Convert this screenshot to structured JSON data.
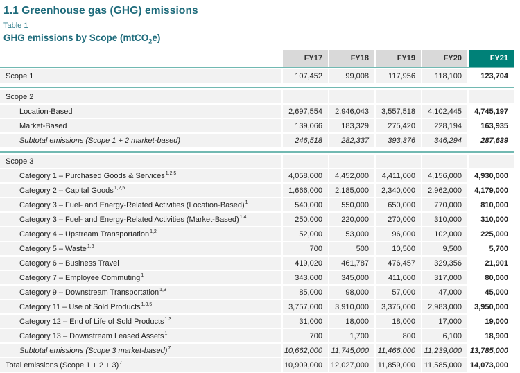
{
  "page": {
    "section_title": "1.1 Greenhouse gas (GHG) emissions",
    "table_label": "Table 1",
    "table_title_prefix": "GHG emissions by Scope (mtCO",
    "table_title_subscript": "2",
    "table_title_suffix": "e)"
  },
  "colors": {
    "accent_teal": "#008178",
    "separator_teal": "#72B9B2",
    "heading_teal": "#1E6B7B",
    "header_gray": "#D9D9D9",
    "row_stripe_gray": "#F2F2F2",
    "text_dark": "#222222"
  },
  "table": {
    "columns": [
      "FY17",
      "FY18",
      "FY19",
      "FY20",
      "FY21"
    ],
    "rows": [
      {
        "label": "Scope 1",
        "sup": "",
        "indent": 0,
        "italic": false,
        "break_before": false,
        "values": [
          "107,452",
          "99,008",
          "117,956",
          "118,100",
          "123,704"
        ]
      },
      {
        "label": "Scope 2",
        "sup": "",
        "indent": 0,
        "italic": false,
        "break_before": true,
        "values": [
          "",
          "",
          "",
          "",
          ""
        ]
      },
      {
        "label": "Location-Based",
        "sup": "",
        "indent": 1,
        "italic": false,
        "break_before": false,
        "values": [
          "2,697,554",
          "2,946,043",
          "3,557,518",
          "4,102,445",
          "4,745,197"
        ]
      },
      {
        "label": "Market-Based",
        "sup": "",
        "indent": 1,
        "italic": false,
        "break_before": false,
        "values": [
          "139,066",
          "183,329",
          "275,420",
          "228,194",
          "163,935"
        ]
      },
      {
        "label": "Subtotal emissions (Scope 1 + 2 market-based)",
        "sup": "",
        "indent": 1,
        "italic": true,
        "break_before": false,
        "values": [
          "246,518",
          "282,337",
          "393,376",
          "346,294",
          "287,639"
        ]
      },
      {
        "label": "Scope 3",
        "sup": "",
        "indent": 0,
        "italic": false,
        "break_before": true,
        "values": [
          "",
          "",
          "",
          "",
          ""
        ]
      },
      {
        "label": "Category 1 – Purchased Goods & Services",
        "sup": "1,2,5",
        "indent": 1,
        "italic": false,
        "break_before": false,
        "values": [
          "4,058,000",
          "4,452,000",
          "4,411,000",
          "4,156,000",
          "4,930,000"
        ]
      },
      {
        "label": "Category 2 – Capital Goods",
        "sup": "1,2,5",
        "indent": 1,
        "italic": false,
        "break_before": false,
        "values": [
          "1,666,000",
          "2,185,000",
          "2,340,000",
          "2,962,000",
          "4,179,000"
        ]
      },
      {
        "label": "Category 3 – Fuel- and Energy-Related Activities (Location-Based)",
        "sup": "1",
        "indent": 1,
        "italic": false,
        "break_before": false,
        "values": [
          "540,000",
          "550,000",
          "650,000",
          "770,000",
          "810,000"
        ]
      },
      {
        "label": "Category 3 – Fuel- and Energy-Related Activities (Market-Based)",
        "sup": "1,4",
        "indent": 1,
        "italic": false,
        "break_before": false,
        "values": [
          "250,000",
          "220,000",
          "270,000",
          "310,000",
          "310,000"
        ]
      },
      {
        "label": "Category 4 – Upstream Transportation",
        "sup": "1,2",
        "indent": 1,
        "italic": false,
        "break_before": false,
        "values": [
          "52,000",
          "53,000",
          "96,000",
          "102,000",
          "225,000"
        ]
      },
      {
        "label": "Category 5 – Waste",
        "sup": "1,6",
        "indent": 1,
        "italic": false,
        "break_before": false,
        "values": [
          "700",
          "500",
          "10,500",
          "9,500",
          "5,700"
        ]
      },
      {
        "label": "Category 6 – Business Travel",
        "sup": "",
        "indent": 1,
        "italic": false,
        "break_before": false,
        "values": [
          "419,020",
          "461,787",
          "476,457",
          "329,356",
          "21,901"
        ]
      },
      {
        "label": "Category 7 – Employee Commuting",
        "sup": "1",
        "indent": 1,
        "italic": false,
        "break_before": false,
        "values": [
          "343,000",
          "345,000",
          "411,000",
          "317,000",
          "80,000"
        ]
      },
      {
        "label": "Category 9 – Downstream Transportation",
        "sup": "1,3",
        "indent": 1,
        "italic": false,
        "break_before": false,
        "values": [
          "85,000",
          "98,000",
          "57,000",
          "47,000",
          "45,000"
        ]
      },
      {
        "label": "Category 11 – Use of Sold Products",
        "sup": "1,3,5",
        "indent": 1,
        "italic": false,
        "break_before": false,
        "values": [
          "3,757,000",
          "3,910,000",
          "3,375,000",
          "2,983,000",
          "3,950,000"
        ]
      },
      {
        "label": "Category 12 – End of Life of Sold Products",
        "sup": "1,3",
        "indent": 1,
        "italic": false,
        "break_before": false,
        "values": [
          "31,000",
          "18,000",
          "18,000",
          "17,000",
          "19,000"
        ]
      },
      {
        "label": "Category 13 – Downstream Leased Assets",
        "sup": "1",
        "indent": 1,
        "italic": false,
        "break_before": false,
        "values": [
          "700",
          "1,700",
          "800",
          "6,100",
          "18,900"
        ]
      },
      {
        "label": "Subtotal emissions (Scope 3 market-based)",
        "sup": "7",
        "indent": 1,
        "italic": true,
        "break_before": false,
        "values": [
          "10,662,000",
          "11,745,000",
          "11,466,000",
          "11,239,000",
          "13,785,000"
        ]
      },
      {
        "label": "Total emissions (Scope 1 + 2 + 3)",
        "sup": "7",
        "indent": 0,
        "italic": false,
        "break_before": false,
        "values": [
          "10,909,000",
          "12,027,000",
          "11,859,000",
          "11,585,000",
          "14,073,000"
        ]
      }
    ]
  }
}
